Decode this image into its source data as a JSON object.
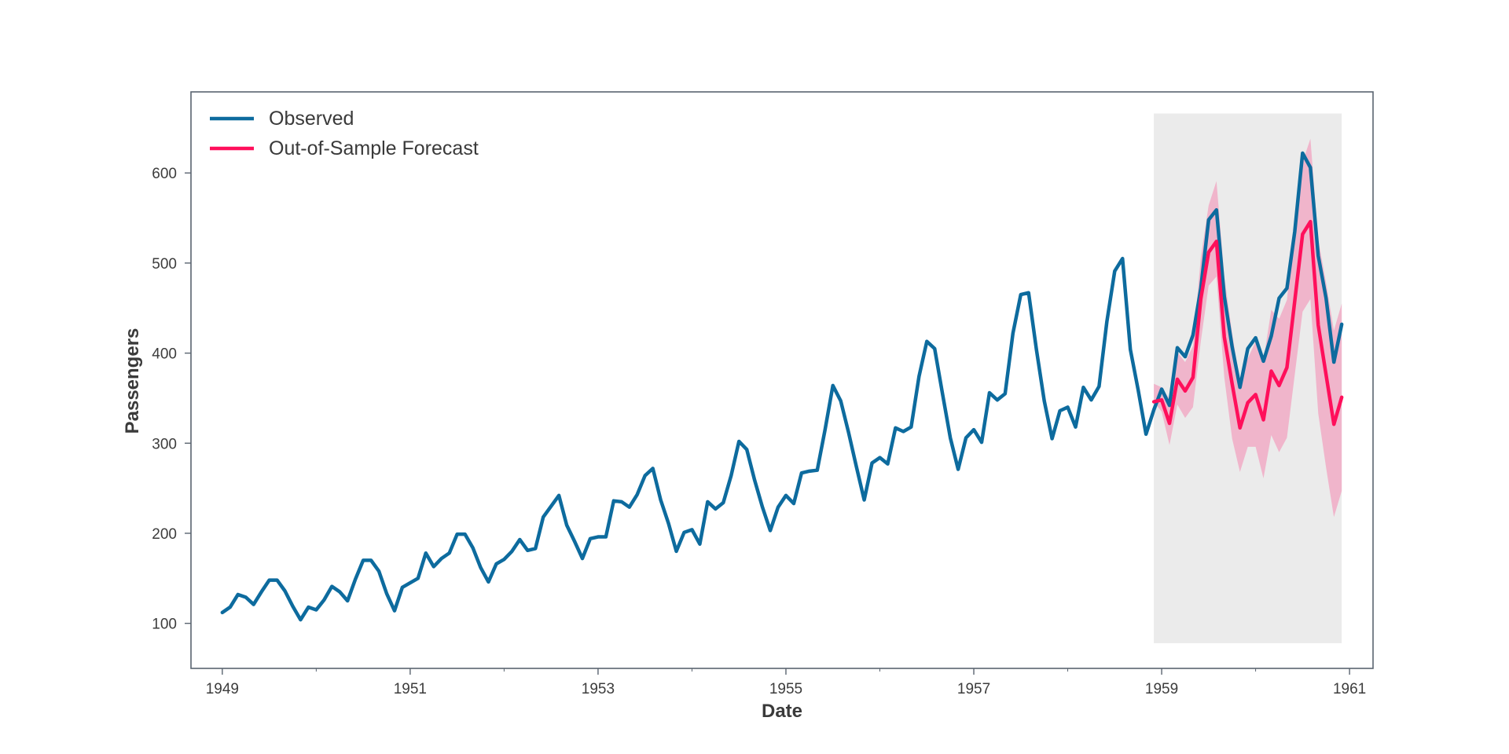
{
  "chart_data": {
    "type": "line",
    "xlabel": "Date",
    "ylabel": "Passengers",
    "xlim": [
      "1948-09",
      "1961-04"
    ],
    "ylim": [
      50,
      690
    ],
    "x_ticks": [
      "1949",
      "1951",
      "1953",
      "1955",
      "1957",
      "1959",
      "1961"
    ],
    "x_minor_ticks": [
      "1950",
      "1952",
      "1954",
      "1956",
      "1958",
      "1960"
    ],
    "y_ticks": [
      100,
      200,
      300,
      400,
      500,
      600
    ],
    "grid": false,
    "legend": {
      "placement": "top-left",
      "entries": [
        "Observed",
        "Out-of-Sample Forecast"
      ]
    },
    "colors": {
      "observed": "#0d6b9e",
      "forecast": "#ff0f5b",
      "confidence_band": "#f0b5cb",
      "forecast_region": "#ebebeb",
      "frame": "#5a6470"
    },
    "forecast_region": {
      "start": "1958-12",
      "end": "1960-12",
      "ymin": 78,
      "ymax": 666
    },
    "series": [
      {
        "name": "Observed",
        "start": "1949-01",
        "frequency": "monthly",
        "values": [
          112,
          118,
          132,
          129,
          121,
          135,
          148,
          148,
          136,
          119,
          104,
          118,
          115,
          126,
          141,
          135,
          125,
          149,
          170,
          170,
          158,
          133,
          114,
          140,
          145,
          150,
          178,
          163,
          172,
          178,
          199,
          199,
          184,
          162,
          146,
          166,
          171,
          180,
          193,
          181,
          183,
          218,
          230,
          242,
          209,
          191,
          172,
          194,
          196,
          196,
          236,
          235,
          229,
          243,
          264,
          272,
          237,
          211,
          180,
          201,
          204,
          188,
          235,
          227,
          234,
          264,
          302,
          293,
          259,
          229,
          203,
          229,
          242,
          233,
          267,
          269,
          270,
          315,
          364,
          347,
          312,
          274,
          237,
          278,
          284,
          277,
          317,
          313,
          318,
          374,
          413,
          405,
          355,
          306,
          271,
          306,
          315,
          301,
          356,
          348,
          355,
          422,
          465,
          467,
          404,
          347,
          305,
          336,
          340,
          318,
          362,
          348,
          363,
          435,
          491,
          505,
          404,
          359,
          310,
          337,
          360,
          342,
          406,
          396,
          420,
          472,
          548,
          559,
          463,
          407,
          362,
          405,
          417,
          391,
          419,
          461,
          472,
          535,
          622,
          606,
          508,
          461,
          390,
          432
        ]
      },
      {
        "name": "Out-of-Sample Forecast",
        "start": "1958-12",
        "frequency": "monthly",
        "values": [
          346,
          348,
          322,
          371,
          358,
          373,
          460,
          512,
          524,
          418,
          366,
          317,
          345,
          354,
          326,
          380,
          364,
          384,
          458,
          532,
          546,
          431,
          376,
          321,
          351
        ],
        "lower": [
          346,
          335,
          298,
          343,
          328,
          340,
          413,
          475,
          485,
          373,
          305,
          268,
          296,
          296,
          261,
          309,
          290,
          306,
          376,
          446,
          460,
          333,
          273,
          218,
          247
        ],
        "upper": [
          366,
          362,
          349,
          401,
          390,
          408,
          506,
          564,
          591,
          485,
          422,
          368,
          394,
          413,
          392,
          448,
          438,
          459,
          542,
          612,
          638,
          526,
          478,
          425,
          455
        ]
      }
    ]
  }
}
